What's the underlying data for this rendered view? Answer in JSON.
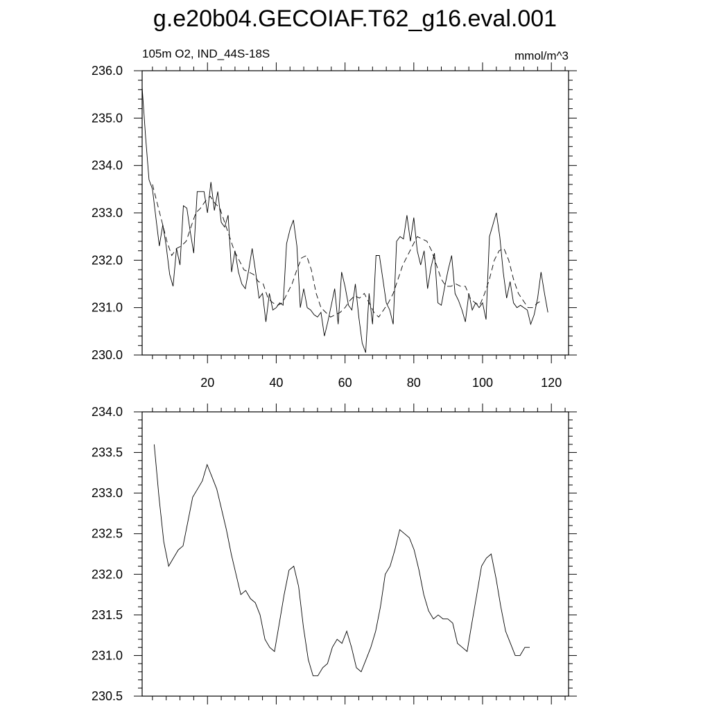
{
  "title": "g.e20b04.GECOIAF.T62_g16.eval.001",
  "chart_data": [
    {
      "type": "line",
      "left_string": "105m O2, IND_44S-18S",
      "right_string": "mmol/m^3",
      "xlim": [
        1,
        125
      ],
      "ylim": [
        230.0,
        236.0
      ],
      "x_major_ticks": [
        20,
        40,
        60,
        80,
        100,
        120
      ],
      "y_major_ticks": [
        230.0,
        231.0,
        232.0,
        233.0,
        234.0,
        235.0,
        236.0
      ],
      "y_tick_labels": [
        "230.0",
        "231.0",
        "232.0",
        "233.0",
        "234.0",
        "235.0",
        "236.0"
      ],
      "series": [
        {
          "style": "solid",
          "x_start": 1,
          "values": [
            235.65,
            234.6,
            233.7,
            233.5,
            232.9,
            232.3,
            232.75,
            232.3,
            231.7,
            231.45,
            232.25,
            231.9,
            233.15,
            233.1,
            232.6,
            232.15,
            233.45,
            233.45,
            233.45,
            233.0,
            233.65,
            233.05,
            233.45,
            232.8,
            232.7,
            232.95,
            231.75,
            232.2,
            231.75,
            231.5,
            231.4,
            231.8,
            232.25,
            231.75,
            231.2,
            231.3,
            230.7,
            231.3,
            230.95,
            231.0,
            231.1,
            231.05,
            232.35,
            232.65,
            232.85,
            232.3,
            231.0,
            231.4,
            231.0,
            230.95,
            230.85,
            230.8,
            230.9,
            230.4,
            230.7,
            231.05,
            231.4,
            230.65,
            231.75,
            231.45,
            231.05,
            230.95,
            231.5,
            230.8,
            230.25,
            230.05,
            231.3,
            230.65,
            232.1,
            232.1,
            231.6,
            231.1,
            230.95,
            230.65,
            232.4,
            232.5,
            232.45,
            232.95,
            232.4,
            232.9,
            232.2,
            231.9,
            232.2,
            231.4,
            231.85,
            232.15,
            231.1,
            231.05,
            231.45,
            231.8,
            232.1,
            231.3,
            231.15,
            230.95,
            230.7,
            231.3,
            230.95,
            231.1,
            231.0,
            231.1,
            230.75,
            232.5,
            232.75,
            233.0,
            232.5,
            231.75,
            231.2,
            231.55,
            231.1,
            231.0,
            231.05,
            231.0,
            230.95,
            230.65,
            230.85,
            231.2,
            231.75,
            231.3,
            230.9
          ],
          "x_step": 1
        },
        {
          "style": "dashed",
          "x_start": 4,
          "values": [
            233.6,
            233.2,
            232.8,
            232.4,
            232.1,
            232.25,
            232.3,
            232.4,
            232.7,
            233.0,
            233.1,
            233.25,
            233.35,
            233.2,
            233.1,
            232.8,
            232.5,
            232.2,
            232.0,
            231.8,
            231.75,
            231.7,
            231.55,
            231.5,
            231.2,
            231.1,
            231.05,
            231.1,
            231.3,
            231.5,
            231.8,
            232.05,
            232.1,
            231.8,
            231.3,
            231.0,
            230.9,
            230.8,
            230.85,
            230.9,
            231.0,
            231.15,
            231.25,
            231.2,
            231.3,
            231.1,
            230.9,
            230.8,
            230.95,
            231.1,
            231.3,
            231.6,
            231.9,
            232.1,
            232.3,
            232.5,
            232.45,
            232.4,
            232.2,
            231.9,
            231.6,
            231.45,
            231.45,
            231.5,
            231.45,
            231.45,
            231.2,
            231.1,
            231.05,
            231.3,
            231.6,
            232.0,
            232.2,
            232.25,
            232.0,
            231.6,
            231.3,
            231.15,
            231.0,
            231.0,
            231.1,
            231.15
          ],
          "x_step": 1.4
        }
      ]
    },
    {
      "type": "line",
      "xlim": [
        1,
        125
      ],
      "ylim": [
        230.5,
        234.0
      ],
      "x_major_ticks": [
        20,
        40,
        60,
        80,
        100,
        120
      ],
      "y_major_ticks": [
        230.5,
        231.0,
        231.5,
        232.0,
        232.5,
        233.0,
        233.5,
        234.0
      ],
      "y_tick_labels": [
        "230.5",
        "231.0",
        "231.5",
        "232.0",
        "232.5",
        "233.0",
        "233.5",
        "234.0"
      ],
      "series": [
        {
          "style": "solid",
          "x_start": 4.5,
          "x_step": 1.4,
          "values": [
            233.6,
            232.95,
            232.4,
            232.1,
            232.2,
            232.3,
            232.35,
            232.65,
            232.95,
            233.05,
            233.15,
            233.35,
            233.2,
            233.05,
            232.8,
            232.55,
            232.25,
            232.0,
            231.75,
            231.8,
            231.7,
            231.65,
            231.5,
            231.2,
            231.1,
            231.05,
            231.4,
            231.75,
            232.05,
            232.1,
            231.85,
            231.35,
            230.95,
            230.75,
            230.75,
            230.85,
            230.9,
            231.1,
            231.2,
            231.15,
            231.3,
            231.1,
            230.85,
            230.8,
            230.95,
            231.1,
            231.3,
            231.6,
            232.0,
            232.1,
            232.3,
            232.55,
            232.5,
            232.45,
            232.3,
            232.05,
            231.75,
            231.55,
            231.45,
            231.5,
            231.45,
            231.45,
            231.4,
            231.15,
            231.1,
            231.05,
            231.4,
            231.75,
            232.1,
            232.2,
            232.25,
            231.95,
            231.6,
            231.3,
            231.15,
            231.0,
            231.0,
            231.1,
            231.1
          ]
        }
      ]
    }
  ]
}
